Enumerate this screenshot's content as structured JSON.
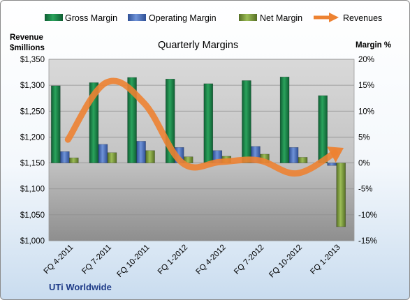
{
  "chart_data": {
    "type": "bar",
    "title": "Quarterly Margins",
    "source_label": "UTi Worldwide",
    "categories": [
      "FQ 4-2011",
      "FQ 7-2011",
      "FQ 10-2011",
      "FQ 1-2012",
      "FQ 4-2012",
      "FQ 7-2012",
      "FQ 10-2012",
      "FQ 1-2013"
    ],
    "y_left": {
      "label_line1": "Revenue",
      "label_line2": "$millions",
      "lim": [
        1000,
        1350
      ],
      "step": 50,
      "ticks": [
        "$1,000",
        "$1,050",
        "$1,100",
        "$1,150",
        "$1,200",
        "$1,250",
        "$1,300",
        "$1,350"
      ]
    },
    "y_right": {
      "label": "Margin %",
      "lim": [
        -15,
        20
      ],
      "step": 5,
      "ticks": [
        "-15%",
        "-10%",
        "-5%",
        "0%",
        "5%",
        "10%",
        "15%",
        "20%"
      ]
    },
    "series": [
      {
        "name": "Gross Margin",
        "kind": "bar",
        "axis": "right",
        "color": "#1e8a4c",
        "values": [
          14.9,
          15.5,
          16.5,
          16.2,
          15.3,
          15.9,
          16.6,
          13.0
        ]
      },
      {
        "name": "Operating Margin",
        "kind": "bar",
        "axis": "right",
        "color": "#4f74c0",
        "values": [
          2.2,
          3.6,
          4.2,
          3.0,
          2.4,
          3.2,
          3.0,
          -0.5
        ]
      },
      {
        "name": "Net Margin",
        "kind": "bar",
        "axis": "right",
        "color": "#7a9a3c",
        "values": [
          1.0,
          2.0,
          2.4,
          1.2,
          1.3,
          1.7,
          1.1,
          -12.3
        ]
      },
      {
        "name": "Revenues",
        "kind": "line",
        "axis": "left",
        "color": "#ed8232",
        "values": [
          1195,
          1305,
          1265,
          1150,
          1152,
          1155,
          1130,
          1170
        ]
      }
    ],
    "plot_background": "#c0c0c0",
    "grid": true,
    "legend": "top"
  }
}
